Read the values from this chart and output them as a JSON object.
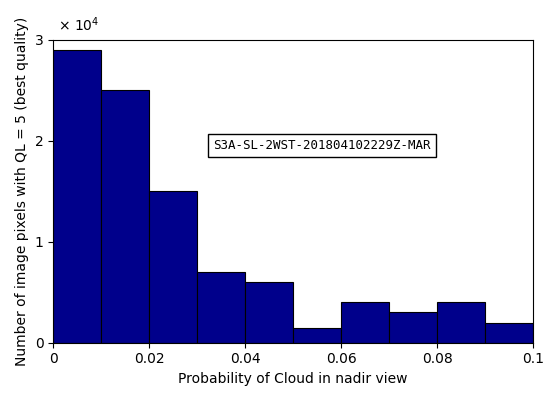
{
  "bar_values": [
    29000,
    25000,
    15000,
    7000,
    6000,
    1500,
    4000,
    3000,
    4000,
    2000
  ],
  "bin_edges": [
    0,
    0.01,
    0.02,
    0.03,
    0.04,
    0.05,
    0.06,
    0.07,
    0.08,
    0.09,
    0.1
  ],
  "bar_color": "#00008B",
  "bar_edge_color": "#000000",
  "xlabel": "Probability of Cloud in nadir view",
  "ylabel": "Number of image pixels with QL = 5 (best quality)",
  "xlim": [
    0,
    0.1
  ],
  "ylim": [
    0,
    30000
  ],
  "ytick_labels": [
    "0",
    "1",
    "2",
    "3"
  ],
  "ytick_values": [
    0,
    10000,
    20000,
    30000
  ],
  "xtick_values": [
    0,
    0.02,
    0.04,
    0.06,
    0.08,
    0.1
  ],
  "legend_text": "S3A-SL-2WST-201804102229Z-MAR",
  "legend_fontsize": 9,
  "axis_fontsize": 10,
  "tick_fontsize": 10
}
